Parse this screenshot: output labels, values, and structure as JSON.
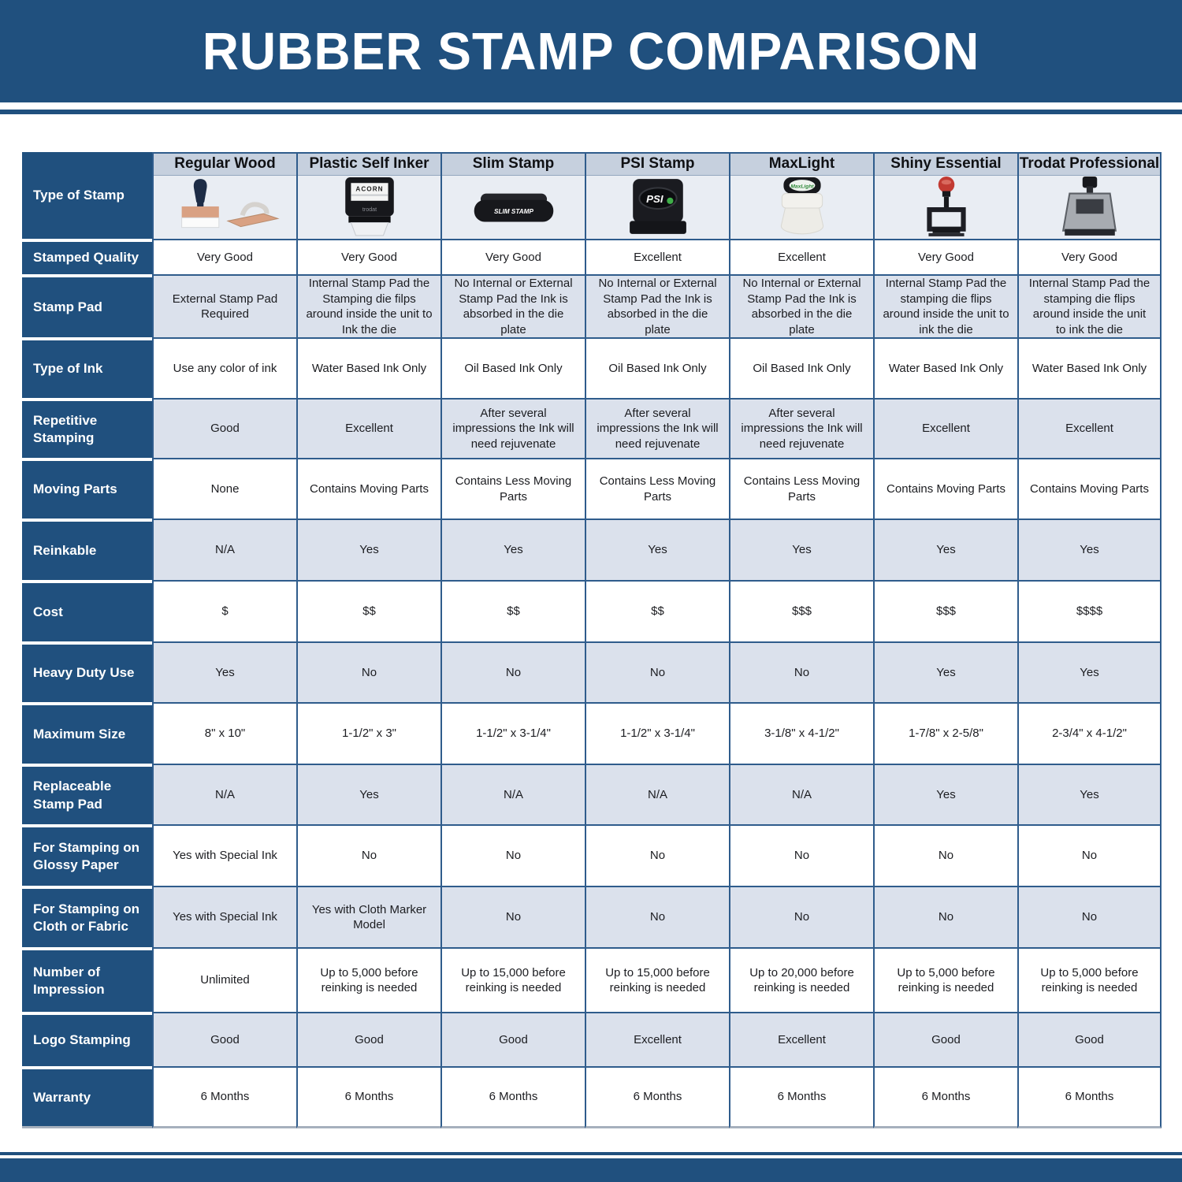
{
  "title": "RUBBER STAMP COMPARISON",
  "colors": {
    "navy": "#20507e",
    "grid_line": "#2f5c8c",
    "alt_row": "#dbe1ec",
    "header_strip": "#c6d0de",
    "image_row": "#e9edf3"
  },
  "table": {
    "corner_label": "Type of Stamp",
    "columns": [
      {
        "name": "Regular Wood",
        "image": "regular-wood-stamp-image"
      },
      {
        "name": "Plastic Self Inker",
        "image": "plastic-self-inker-stamp-image"
      },
      {
        "name": "Slim Stamp",
        "image": "slim-stamp-image"
      },
      {
        "name": "PSI Stamp",
        "image": "psi-stamp-image"
      },
      {
        "name": "MaxLight",
        "image": "maxlight-stamp-image"
      },
      {
        "name": "Shiny Essential",
        "image": "shiny-essential-stamp-image"
      },
      {
        "name": "Trodat Professional",
        "image": "trodat-professional-stamp-image"
      }
    ],
    "rows": [
      {
        "label": "Stamped Quality",
        "values": [
          "Very Good",
          "Very Good",
          "Very Good",
          "Excellent",
          "Excellent",
          "Very Good",
          "Very Good"
        ]
      },
      {
        "label": "Stamp Pad",
        "values": [
          "External Stamp Pad Required",
          "Internal Stamp Pad the Stamping die filps around inside the unit to Ink the die",
          "No Internal or External Stamp Pad the Ink is absorbed in the die plate",
          "No Internal or External Stamp Pad the Ink is absorbed in the die plate",
          "No Internal or External Stamp Pad the Ink is absorbed in the die plate",
          "Internal Stamp Pad the stamping die flips around inside the unit to ink the die",
          "Internal Stamp Pad the stamping die flips around inside the unit to ink the die"
        ]
      },
      {
        "label": "Type of Ink",
        "values": [
          "Use any color of ink",
          "Water Based Ink Only",
          "Oil Based Ink Only",
          "Oil Based Ink Only",
          "Oil Based Ink Only",
          "Water Based Ink Only",
          "Water Based Ink Only"
        ]
      },
      {
        "label": "Repetitive Stamping",
        "values": [
          "Good",
          "Excellent",
          "After several impressions the Ink will need rejuvenate",
          "After several impressions the Ink will need rejuvenate",
          "After several impressions the Ink will need rejuvenate",
          "Excellent",
          "Excellent"
        ]
      },
      {
        "label": "Moving Parts",
        "values": [
          "None",
          "Contains Moving Parts",
          "Contains Less Moving Parts",
          "Contains Less Moving Parts",
          "Contains Less Moving Parts",
          "Contains Moving Parts",
          "Contains Moving Parts"
        ]
      },
      {
        "label": "Reinkable",
        "values": [
          "N/A",
          "Yes",
          "Yes",
          "Yes",
          "Yes",
          "Yes",
          "Yes"
        ]
      },
      {
        "label": "Cost",
        "values": [
          "$",
          "$$",
          "$$",
          "$$",
          "$$$",
          "$$$",
          "$$$$"
        ]
      },
      {
        "label": "Heavy Duty Use",
        "values": [
          "Yes",
          "No",
          "No",
          "No",
          "No",
          "Yes",
          "Yes"
        ]
      },
      {
        "label": "Maximum Size",
        "values": [
          "8\" x 10\"",
          "1-1/2\" x 3\"",
          "1-1/2\" x 3-1/4\"",
          "1-1/2\" x 3-1/4\"",
          "3-1/8\" x 4-1/2\"",
          "1-7/8\" x 2-5/8\"",
          "2-3/4\" x 4-1/2\""
        ]
      },
      {
        "label": "Replaceable Stamp Pad",
        "values": [
          "N/A",
          "Yes",
          "N/A",
          "N/A",
          "N/A",
          "Yes",
          "Yes"
        ]
      },
      {
        "label": "For Stamping on Glossy Paper",
        "values": [
          "Yes with Special Ink",
          "No",
          "No",
          "No",
          "No",
          "No",
          "No"
        ]
      },
      {
        "label": "For Stamping on Cloth or Fabric",
        "values": [
          "Yes with Special Ink",
          "Yes with Cloth Marker Model",
          "No",
          "No",
          "No",
          "No",
          "No"
        ]
      },
      {
        "label": "Number of Impression",
        "values": [
          "Unlimited",
          "Up to 5,000 before reinking is needed",
          "Up to 15,000 before reinking is needed",
          "Up to 15,000 before reinking is needed",
          "Up to 20,000 before reinking is needed",
          "Up to 5,000 before reinking is needed",
          "Up to 5,000 before reinking is needed"
        ]
      },
      {
        "label": "Logo Stamping",
        "values": [
          "Good",
          "Good",
          "Good",
          "Excellent",
          "Excellent",
          "Good",
          "Good"
        ]
      },
      {
        "label": "Warranty",
        "values": [
          "6 Months",
          "6 Months",
          "6 Months",
          "6 Months",
          "6 Months",
          "6 Months",
          "6 Months"
        ]
      }
    ]
  }
}
